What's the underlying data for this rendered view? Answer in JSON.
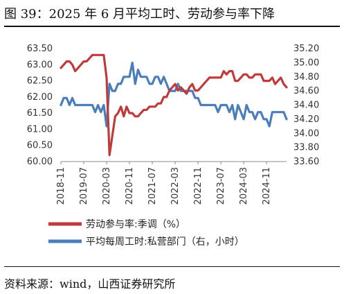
{
  "title": "图 39：2025 年 6 月平均工时、劳动参与率下降",
  "source": "资料来源：wind，山西证券研究所",
  "chart_data": {
    "type": "line",
    "x": [
      "2018-11",
      "2018-12",
      "2019-01",
      "2019-02",
      "2019-03",
      "2019-04",
      "2019-05",
      "2019-06",
      "2019-07",
      "2019-08",
      "2019-09",
      "2019-10",
      "2019-11",
      "2019-12",
      "2020-01",
      "2020-02",
      "2020-03",
      "2020-04",
      "2020-05",
      "2020-06",
      "2020-07",
      "2020-08",
      "2020-09",
      "2020-10",
      "2020-11",
      "2020-12",
      "2021-01",
      "2021-02",
      "2021-03",
      "2021-04",
      "2021-05",
      "2021-06",
      "2021-07",
      "2021-08",
      "2021-09",
      "2021-10",
      "2021-11",
      "2021-12",
      "2022-01",
      "2022-02",
      "2022-03",
      "2022-04",
      "2022-05",
      "2022-06",
      "2022-07",
      "2022-08",
      "2022-09",
      "2022-10",
      "2022-11",
      "2022-12",
      "2023-01",
      "2023-02",
      "2023-03",
      "2023-04",
      "2023-05",
      "2023-06",
      "2023-07",
      "2023-08",
      "2023-09",
      "2023-10",
      "2023-11",
      "2023-12",
      "2024-01",
      "2024-02",
      "2024-03",
      "2024-04",
      "2024-05",
      "2024-06",
      "2024-07",
      "2024-08",
      "2024-09",
      "2024-10",
      "2024-11",
      "2024-12",
      "2025-01",
      "2025-02",
      "2025-03",
      "2025-04",
      "2025-05",
      "2025-06"
    ],
    "x_tick_labels": [
      "2018-11",
      "2019-07",
      "2020-03",
      "2020-11",
      "2021-07",
      "2022-03",
      "2022-11",
      "2023-07",
      "2024-03",
      "2024-11"
    ],
    "y_left": {
      "ticks": [
        "60.00",
        "60.50",
        "61.00",
        "61.50",
        "62.00",
        "62.50",
        "63.00",
        "63.50"
      ],
      "range": [
        60.0,
        63.5
      ]
    },
    "y_right": {
      "ticks": [
        "33.60",
        "33.80",
        "34.00",
        "34.20",
        "34.40",
        "34.60",
        "34.80",
        "35.00",
        "35.20"
      ],
      "range": [
        33.6,
        35.2
      ]
    },
    "series": [
      {
        "name": "劳动参与率:季调（%）",
        "axis": "left",
        "color": "#C0393B",
        "values": [
          62.9,
          63.0,
          63.1,
          63.1,
          63.0,
          62.8,
          62.9,
          63.0,
          63.1,
          63.1,
          63.2,
          63.3,
          63.3,
          63.3,
          63.3,
          63.3,
          62.6,
          60.2,
          60.8,
          61.4,
          61.5,
          61.7,
          61.4,
          61.7,
          61.5,
          61.5,
          61.4,
          61.4,
          61.5,
          61.6,
          61.6,
          61.7,
          61.7,
          61.7,
          61.8,
          61.8,
          62.0,
          62.0,
          62.2,
          62.3,
          62.4,
          62.2,
          62.3,
          62.2,
          62.1,
          62.3,
          62.4,
          62.2,
          62.2,
          62.3,
          62.4,
          62.5,
          62.6,
          62.6,
          62.6,
          62.6,
          62.6,
          62.8,
          62.7,
          62.8,
          62.8,
          62.5,
          62.5,
          62.6,
          62.7,
          62.7,
          62.6,
          62.6,
          62.7,
          62.7,
          62.7,
          62.5,
          62.5,
          62.5,
          62.6,
          62.4,
          62.5,
          62.6,
          62.4,
          62.3
        ]
      },
      {
        "name": "平均每周工时:私营部门（右，小时）",
        "axis": "right",
        "color": "#4A7EBB",
        "values": [
          34.4,
          34.5,
          34.5,
          34.4,
          34.5,
          34.4,
          34.4,
          34.4,
          34.4,
          34.4,
          34.4,
          34.4,
          34.3,
          34.4,
          34.3,
          34.4,
          34.1,
          34.7,
          34.6,
          34.6,
          34.7,
          34.7,
          34.8,
          34.8,
          34.8,
          35.0,
          34.7,
          34.9,
          34.8,
          34.8,
          34.8,
          34.7,
          34.7,
          34.8,
          34.8,
          34.7,
          34.8,
          34.7,
          34.6,
          34.6,
          34.6,
          34.7,
          34.6,
          34.6,
          34.6,
          34.6,
          34.6,
          34.5,
          34.5,
          34.4,
          34.4,
          34.4,
          34.4,
          34.4,
          34.4,
          34.3,
          34.4,
          34.4,
          34.4,
          34.3,
          34.4,
          34.2,
          34.4,
          34.3,
          34.2,
          34.4,
          34.3,
          34.3,
          34.2,
          34.3,
          34.3,
          34.2,
          34.2,
          34.1,
          34.3,
          34.3,
          34.3,
          34.3,
          34.3,
          34.2
        ]
      }
    ],
    "legend_position": "bottom",
    "grid": false
  }
}
